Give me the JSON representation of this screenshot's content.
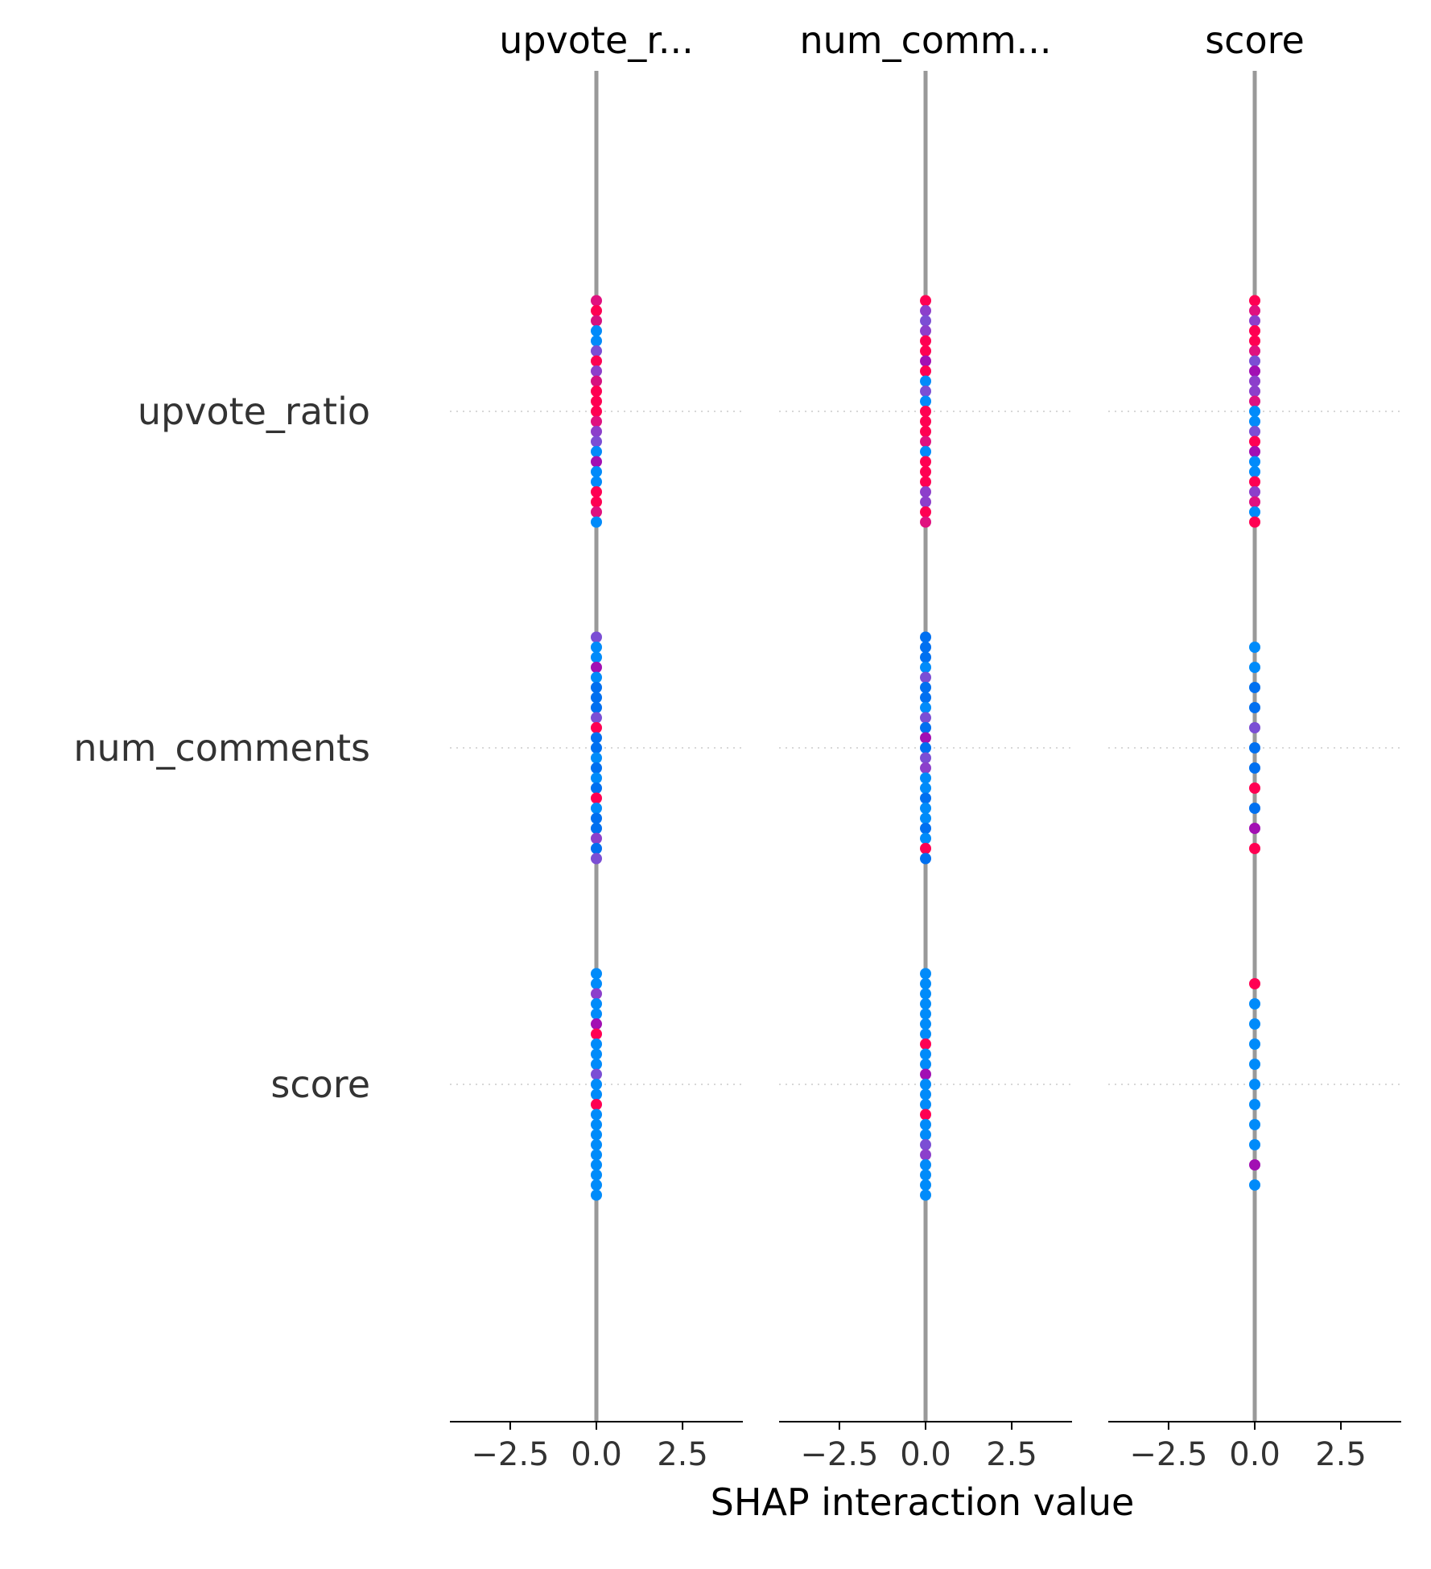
{
  "chart_data": {
    "type": "scatter",
    "subtype": "shap-interaction-summary",
    "xlabel": "SHAP interaction value",
    "xlim": [
      -4.25,
      4.25
    ],
    "xticks": [
      -2.5,
      0.0,
      2.5
    ],
    "xtick_labels": [
      "−2.5",
      "0.0",
      "2.5"
    ],
    "features": [
      "upvote_ratio",
      "num_comments",
      "score"
    ],
    "panels": [
      {
        "title": "upvote_r...",
        "rows": [
          {
            "feature": "upvote_ratio",
            "value_min": 0,
            "value_max": 0,
            "n_points": 23,
            "colors": [
              "#e0117f",
              "#ff0052",
              "#d6117f",
              "#008bfa",
              "#008bfa",
              "#7b4ed4",
              "#ff0052",
              "#8c3fcb",
              "#d6117f",
              "#ff0052",
              "#ff0052",
              "#ff0052",
              "#e0117f",
              "#8c3fcb",
              "#7b4ed4",
              "#008bfa",
              "#a20fb3",
              "#008bfa",
              "#008bfa",
              "#ff0052",
              "#ff0052",
              "#e0117f",
              "#008bfa"
            ]
          },
          {
            "feature": "num_comments",
            "value_min": 0,
            "value_max": 0,
            "n_points": 23,
            "colors": [
              "#7b4ed4",
              "#008bfa",
              "#008bfa",
              "#a20fb3",
              "#008bfa",
              "#0070f0",
              "#0070f0",
              "#0070f0",
              "#7b4ed4",
              "#ff0052",
              "#0070f0",
              "#0070f0",
              "#008bfa",
              "#0070f0",
              "#008bfa",
              "#0070f0",
              "#ff0052",
              "#008bfa",
              "#0070f0",
              "#0070f0",
              "#8c3fcb",
              "#0070f0",
              "#7b4ed4"
            ]
          },
          {
            "feature": "score",
            "value_min": 0,
            "value_max": 0,
            "n_points": 23,
            "colors": [
              "#008bfa",
              "#008bfa",
              "#8c3fcb",
              "#008bfa",
              "#008bfa",
              "#a20fb3",
              "#ff0052",
              "#008bfa",
              "#008bfa",
              "#008bfa",
              "#7b4ed4",
              "#008bfa",
              "#008bfa",
              "#ff0052",
              "#008bfa",
              "#008bfa",
              "#008bfa",
              "#008bfa",
              "#008bfa",
              "#008bfa",
              "#008bfa",
              "#008bfa",
              "#008bfa"
            ]
          }
        ]
      },
      {
        "title": "num_comm...",
        "rows": [
          {
            "feature": "upvote_ratio",
            "value_min": 0,
            "value_max": 0,
            "n_points": 23,
            "colors": [
              "#ff0052",
              "#8c3fcb",
              "#7b4ed4",
              "#8c3fcb",
              "#ff0052",
              "#ff0052",
              "#a20fb3",
              "#ff0052",
              "#008bfa",
              "#7b4ed4",
              "#008bfa",
              "#ff0052",
              "#ff0052",
              "#ff0052",
              "#e0117f",
              "#008bfa",
              "#ff0052",
              "#ff0052",
              "#ff0052",
              "#8c3fcb",
              "#8c3fcb",
              "#ff0052",
              "#e0117f"
            ]
          },
          {
            "feature": "num_comments",
            "value_min": 0,
            "value_max": 0,
            "n_points": 23,
            "colors": [
              "#0070f0",
              "#0070f0",
              "#0070f0",
              "#008bfa",
              "#7b4ed4",
              "#0070f0",
              "#0070f0",
              "#008bfa",
              "#7b4ed4",
              "#0070f0",
              "#a20fb3",
              "#0070f0",
              "#7b4ed4",
              "#8c3fcb",
              "#008bfa",
              "#008bfa",
              "#0070f0",
              "#008bfa",
              "#008bfa",
              "#0070f0",
              "#008bfa",
              "#ff0052",
              "#0070f0"
            ]
          },
          {
            "feature": "score",
            "value_min": 0,
            "value_max": 0,
            "n_points": 23,
            "colors": [
              "#008bfa",
              "#008bfa",
              "#008bfa",
              "#008bfa",
              "#008bfa",
              "#008bfa",
              "#008bfa",
              "#ff0052",
              "#008bfa",
              "#008bfa",
              "#a20fb3",
              "#008bfa",
              "#008bfa",
              "#008bfa",
              "#ff0052",
              "#008bfa",
              "#008bfa",
              "#7b4ed4",
              "#8c3fcb",
              "#008bfa",
              "#008bfa",
              "#008bfa",
              "#008bfa"
            ]
          }
        ]
      },
      {
        "title": "score",
        "rows": [
          {
            "feature": "upvote_ratio",
            "value_min": 0,
            "value_max": 0,
            "n_points": 23,
            "colors": [
              "#ff0052",
              "#e0117f",
              "#8c3fcb",
              "#ff0052",
              "#ff0052",
              "#e0117f",
              "#7b4ed4",
              "#a20fb3",
              "#8c3fcb",
              "#8c3fcb",
              "#e0117f",
              "#008bfa",
              "#008bfa",
              "#7b4ed4",
              "#ff0052",
              "#a20fb3",
              "#008bfa",
              "#008bfa",
              "#ff0052",
              "#8c3fcb",
              "#e0117f",
              "#008bfa",
              "#ff0052"
            ]
          },
          {
            "feature": "num_comments",
            "value_min": 0,
            "value_max": 0,
            "n_points": 11,
            "colors": [
              "#008bfa",
              "#008bfa",
              "#0070f0",
              "#0070f0",
              "#7b4ed4",
              "#0070f0",
              "#0070f0",
              "#ff0052",
              "#0070f0",
              "#a20fb3",
              "#ff0052"
            ]
          },
          {
            "feature": "score",
            "value_min": 0,
            "value_max": 0,
            "n_points": 11,
            "colors": [
              "#ff0052",
              "#008bfa",
              "#008bfa",
              "#008bfa",
              "#008bfa",
              "#008bfa",
              "#008bfa",
              "#008bfa",
              "#008bfa",
              "#a20fb3",
              "#008bfa"
            ]
          }
        ]
      }
    ],
    "zero_line_color": "#999999",
    "gridlines": "dotted-horizontal",
    "legend": "none"
  }
}
